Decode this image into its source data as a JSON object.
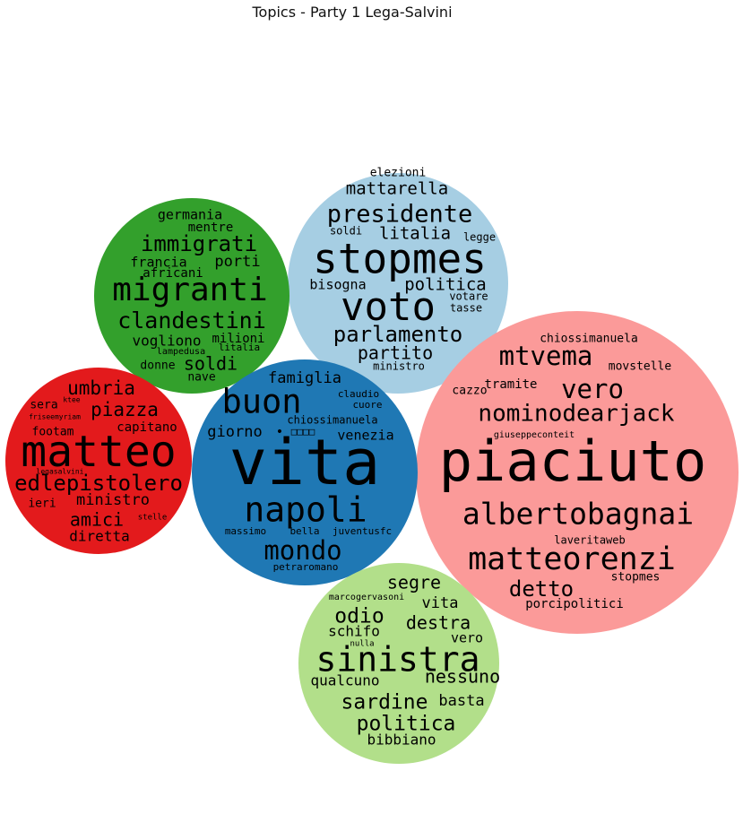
{
  "chart_data": {
    "type": "bubble_wordcloud",
    "title": "Topics - Party 1 Lega-Salvini",
    "topics": [
      {
        "color": "#a6cee3",
        "words": [
          "elezioni",
          "mattarella",
          "presidente",
          "soldi",
          "litalia",
          "legge",
          "stopmes",
          "bisogna",
          "politica",
          "votare",
          "voto",
          "tasse",
          "parlamento",
          "partito",
          "ministro"
        ]
      },
      {
        "color": "#33a02c",
        "words": [
          "germania",
          "mentre",
          "immigrati",
          "francia",
          "porti",
          "africani",
          "migranti",
          "clandestini",
          "vogliono",
          "milioni",
          "lampedusa",
          "litalia",
          "donne",
          "soldi",
          "nave"
        ]
      },
      {
        "color": "#fb9a99",
        "words": [
          "chiossimanuela",
          "mtvema",
          "movstelle",
          "tramite",
          "cazzo",
          "vero",
          "nominodearjack",
          "giuseppeconteit",
          "piaciuto",
          "albertobagnai",
          "laveritaweb",
          "matteorenzi",
          "stopmes",
          "detto",
          "porcipolitici"
        ]
      },
      {
        "color": "#e31a1c",
        "words": [
          "umbria",
          "piazza",
          "sera",
          "ktee",
          "friseemyriam",
          "capitano",
          "footam",
          "matteo",
          "edlepistolero",
          "legasalvini",
          "ministro",
          "ieri",
          "amici",
          "stelle",
          "diretta"
        ]
      },
      {
        "color": "#1f78b4",
        "words": [
          "famiglia",
          "buon",
          "claudio",
          "cuore",
          "chiossimanuela",
          "giorno",
          "•",
          "□□□□",
          "venezia",
          "vita",
          "napoli",
          "massimo",
          "bella",
          "juventusfc",
          "mondo",
          "petraromano"
        ]
      },
      {
        "color": "#b2df8a",
        "words": [
          "segre",
          "marcogervasoni",
          "odio",
          "vita",
          "destra",
          "schifo",
          "vero",
          "nulla",
          "sinistra",
          "nessuno",
          "qualcuno",
          "sardine",
          "basta",
          "politica",
          "bibbiano"
        ]
      }
    ]
  }
}
